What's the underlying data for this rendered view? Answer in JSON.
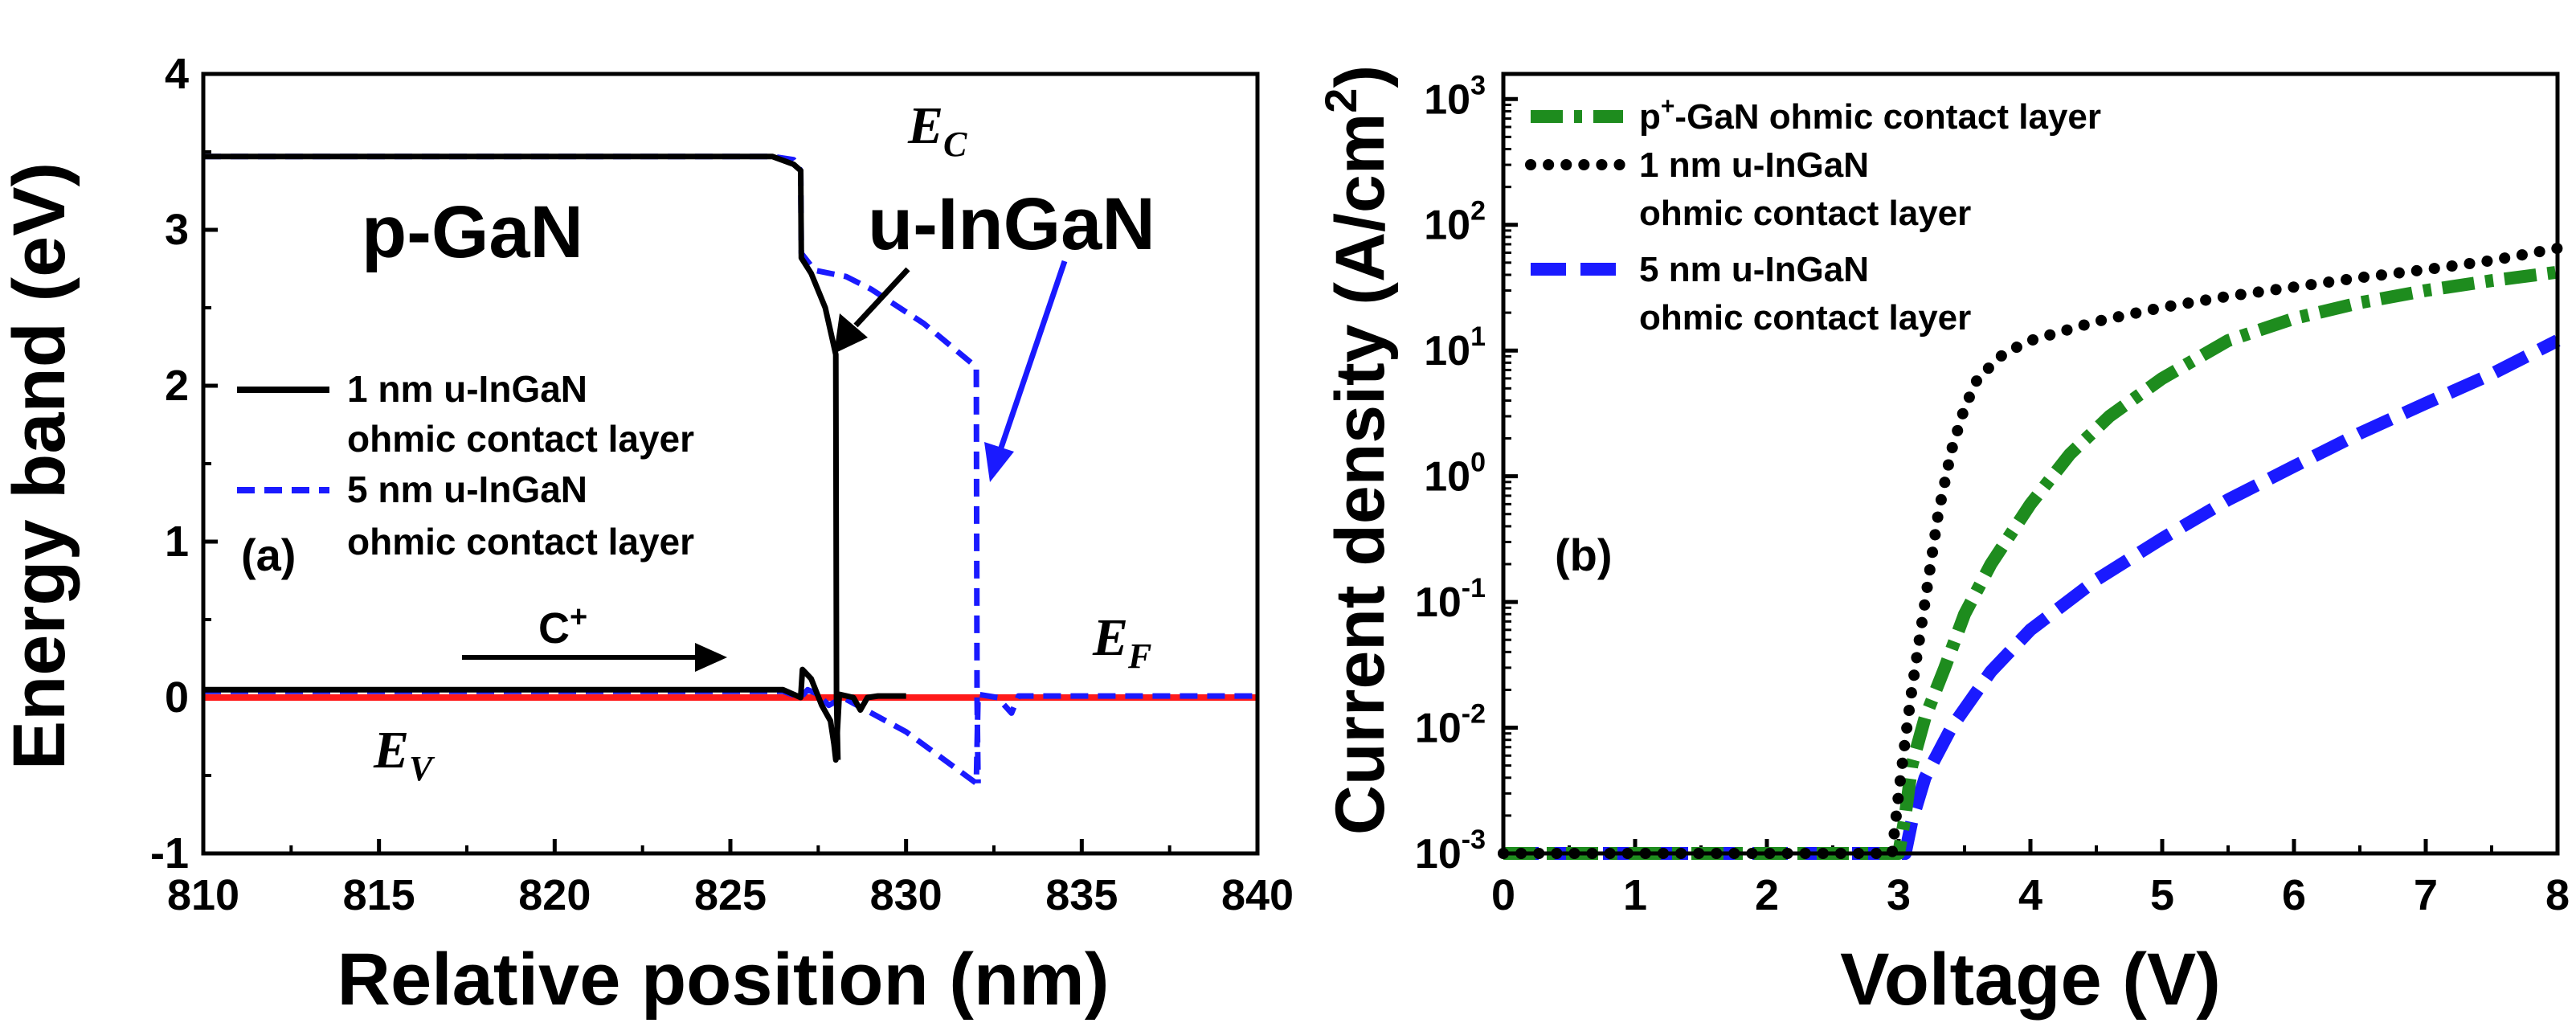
{
  "chart_data": [
    {
      "type": "line",
      "panel": "(a)",
      "xlabel": "Relative position (nm)",
      "ylabel": "Energy band (eV)",
      "xlim": [
        810,
        840
      ],
      "ylim": [
        -1,
        4
      ],
      "xticks": [
        810,
        815,
        820,
        825,
        830,
        835,
        840
      ],
      "yticks": [
        -1,
        0,
        1,
        2,
        3,
        4
      ],
      "annotations": {
        "region_left": "p-GaN",
        "region_right": "u-InGaN",
        "ec": "E",
        "ec_sub": "C",
        "ev": "E",
        "ev_sub": "V",
        "ef": "E",
        "ef_sub": "F",
        "c_plus": "C",
        "c_plus_sup": "+",
        "panel_label": "(a)"
      },
      "series": [
        {
          "name": "1 nm u-InGaN ohmic contact layer",
          "legend_line1": "1 nm u-InGaN",
          "legend_line2": "ohmic contact layer",
          "color": "#000000",
          "style": "solid",
          "ec": {
            "x": [
              810,
              826.2,
              826.8,
              827.0,
              827.02,
              827.3,
              827.7,
              828.0,
              828.02,
              828.06
            ],
            "y": [
              3.47,
              3.47,
              3.42,
              3.38,
              2.82,
              2.72,
              2.5,
              2.2,
              0.0,
              -0.4
            ]
          },
          "ev": {
            "x": [
              810,
              826.5,
              826.8,
              827.0,
              827.05,
              827.3,
              827.6,
              827.85,
              827.95,
              828.0,
              828.1,
              828.5,
              828.7,
              828.9,
              829.2,
              830
            ],
            "y": [
              0.05,
              0.05,
              0.02,
              0.0,
              0.18,
              0.12,
              -0.05,
              -0.15,
              -0.3,
              -0.4,
              0.02,
              0.0,
              -0.08,
              0.0,
              0.01,
              0.01
            ]
          }
        },
        {
          "name": "5 nm u-InGaN ohmic contact layer",
          "legend_line1": "5 nm u-InGaN",
          "legend_line2": "ohmic contact layer",
          "color": "#1a1aff",
          "style": "dash",
          "ec": {
            "x": [
              810,
              826.2,
              826.8,
              827.0,
              827.02,
              827.4,
              828.3,
              829.0,
              830.5,
              832.0,
              832.02,
              832.05
            ],
            "y": [
              3.47,
              3.47,
              3.45,
              3.38,
              2.85,
              2.74,
              2.7,
              2.62,
              2.4,
              2.12,
              0.0,
              -0.55
            ]
          },
          "ev": {
            "x": [
              810,
              826.5,
              827.0,
              827.2,
              827.5,
              827.8,
              828.2,
              830.0,
              832.0,
              832.05,
              832.6,
              833.0,
              833.2,
              840
            ],
            "y": [
              0.04,
              0.04,
              0.0,
              0.05,
              0.02,
              -0.05,
              0.0,
              -0.22,
              -0.55,
              0.02,
              0.0,
              -0.1,
              0.01,
              0.01
            ]
          }
        },
        {
          "name": "Fermi level",
          "color": "#ff1a1a",
          "style": "solid",
          "x": [
            810,
            840
          ],
          "y": [
            0.0,
            0.0
          ]
        }
      ]
    },
    {
      "type": "line",
      "panel": "(b)",
      "xlabel": "Voltage (V)",
      "ylabel": "Current density (A/cm",
      "ylabel_sup": "2",
      "ylabel_end": ")",
      "xlim": [
        0,
        8
      ],
      "ylim_log10": [
        -3,
        3.2
      ],
      "yscale": "log",
      "xticks": [
        0,
        1,
        2,
        3,
        4,
        5,
        6,
        7,
        8
      ],
      "yticks_exp": [
        -3,
        -2,
        -1,
        0,
        1,
        2,
        3
      ],
      "ytick_base": "10",
      "annotations": {
        "panel_label": "(b)"
      },
      "series": [
        {
          "name": "p+-GaN ohmic contact layer",
          "legend_pre": "p",
          "legend_sup": "+",
          "legend_post": "-GaN ohmic contact layer",
          "color": "#1e8c1e",
          "style": "dashdot",
          "x": [
            0,
            3.0,
            3.05,
            3.1,
            3.2,
            3.35,
            3.5,
            3.7,
            4.0,
            4.3,
            4.6,
            5.0,
            5.5,
            6.0,
            6.5,
            7.0,
            7.5,
            8.0
          ],
          "y": [
            0.001,
            0.001,
            0.002,
            0.005,
            0.012,
            0.03,
            0.08,
            0.2,
            0.6,
            1.5,
            3.0,
            6.0,
            12,
            18,
            24,
            30,
            36,
            42
          ]
        },
        {
          "name": "1 nm u-InGaN ohmic contact layer",
          "legend_line1": "1 nm u-InGaN",
          "legend_line2": "ohmic contact layer",
          "color": "#000000",
          "style": "dot",
          "x": [
            0,
            2.95,
            3.0,
            3.05,
            3.1,
            3.2,
            3.3,
            3.4,
            3.5,
            3.6,
            3.8,
            4.0,
            4.5,
            5.0,
            5.5,
            6.0,
            6.5,
            7.0,
            7.5,
            8.0
          ],
          "y": [
            0.001,
            0.001,
            0.003,
            0.008,
            0.02,
            0.1,
            0.5,
            1.6,
            3.5,
            6.0,
            9.5,
            12,
            17,
            22,
            27,
            32,
            38,
            44,
            52,
            65
          ]
        },
        {
          "name": "5 nm u-InGaN ohmic contact layer",
          "legend_line1": "5 nm u-InGaN",
          "legend_line2": "ohmic contact layer",
          "color": "#1a1aff",
          "style": "dash",
          "x": [
            0,
            3.05,
            3.1,
            3.2,
            3.4,
            3.7,
            4.0,
            4.5,
            5.0,
            5.5,
            6.0,
            6.5,
            7.0,
            7.5,
            8.0
          ],
          "y": [
            0.001,
            0.001,
            0.0018,
            0.004,
            0.01,
            0.028,
            0.06,
            0.15,
            0.32,
            0.65,
            1.2,
            2.2,
            3.8,
            6.5,
            12
          ]
        }
      ]
    }
  ]
}
